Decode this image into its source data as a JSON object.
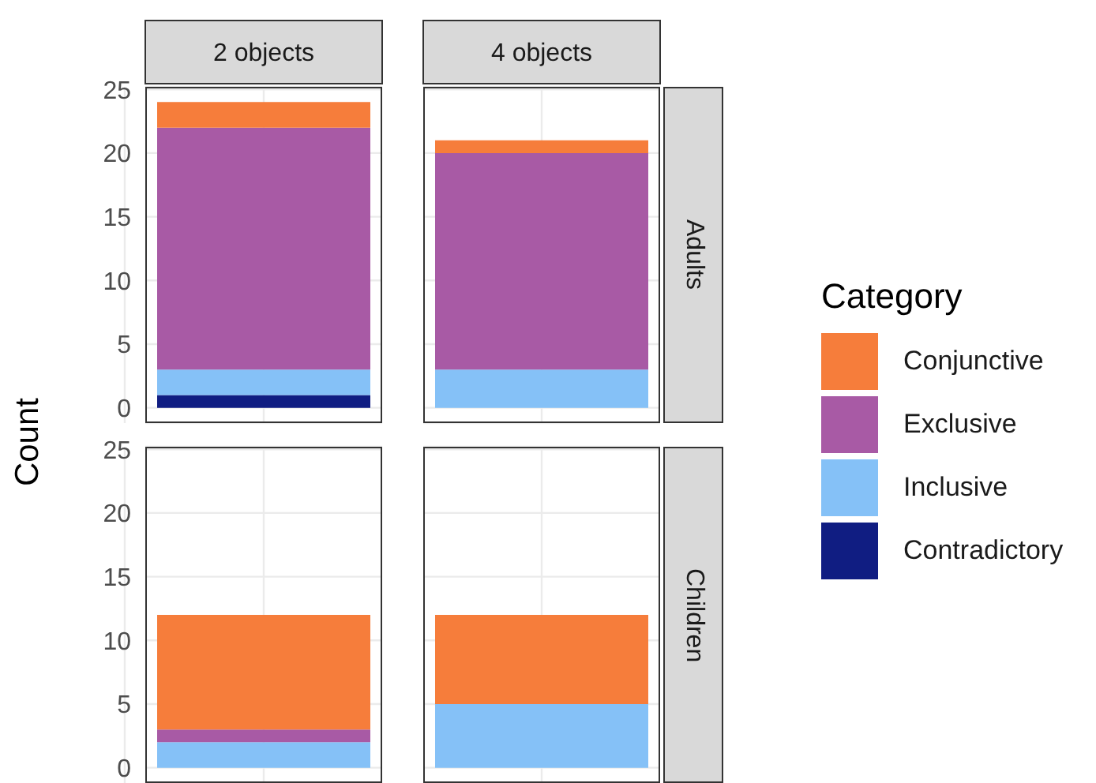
{
  "chart_data": [
    {
      "type": "bar",
      "stacked": true,
      "y2label": "Adults",
      "ylabel": "Count",
      "legend_title": "Category",
      "legend": "right",
      "grid": true,
      "categories": [
        "2 objects",
        "4 objects"
      ],
      "ylim": [
        -1.2,
        25.2
      ],
      "yticks": [
        0,
        5,
        10,
        15,
        20,
        25
      ],
      "series": [
        {
          "name": "Contradictory",
          "color": "#101d82",
          "values": [
            1,
            null
          ]
        },
        {
          "name": "Inclusive",
          "color": "#85c1f7",
          "values": [
            2,
            3
          ]
        },
        {
          "name": "Exclusive",
          "color": "#a85aa5",
          "values": [
            19,
            17
          ]
        },
        {
          "name": "Conjunctive",
          "color": "#f67d3b",
          "values": [
            2,
            1
          ]
        }
      ]
    },
    {
      "type": "bar",
      "stacked": true,
      "y2label": "Children",
      "grid": true,
      "tick_labels": "y",
      "categories": [
        null,
        null
      ],
      "ylim": [
        -1.2,
        25.2
      ],
      "yticks": [
        0,
        5,
        10,
        15,
        20,
        25
      ],
      "series": [
        {
          "color": "#85c1f7",
          "values": [
            2,
            5
          ]
        },
        {
          "color": "#a85aa5",
          "values": [
            1,
            null
          ]
        },
        {
          "color": "#f67d3b",
          "values": [
            9,
            7
          ]
        }
      ]
    }
  ]
}
